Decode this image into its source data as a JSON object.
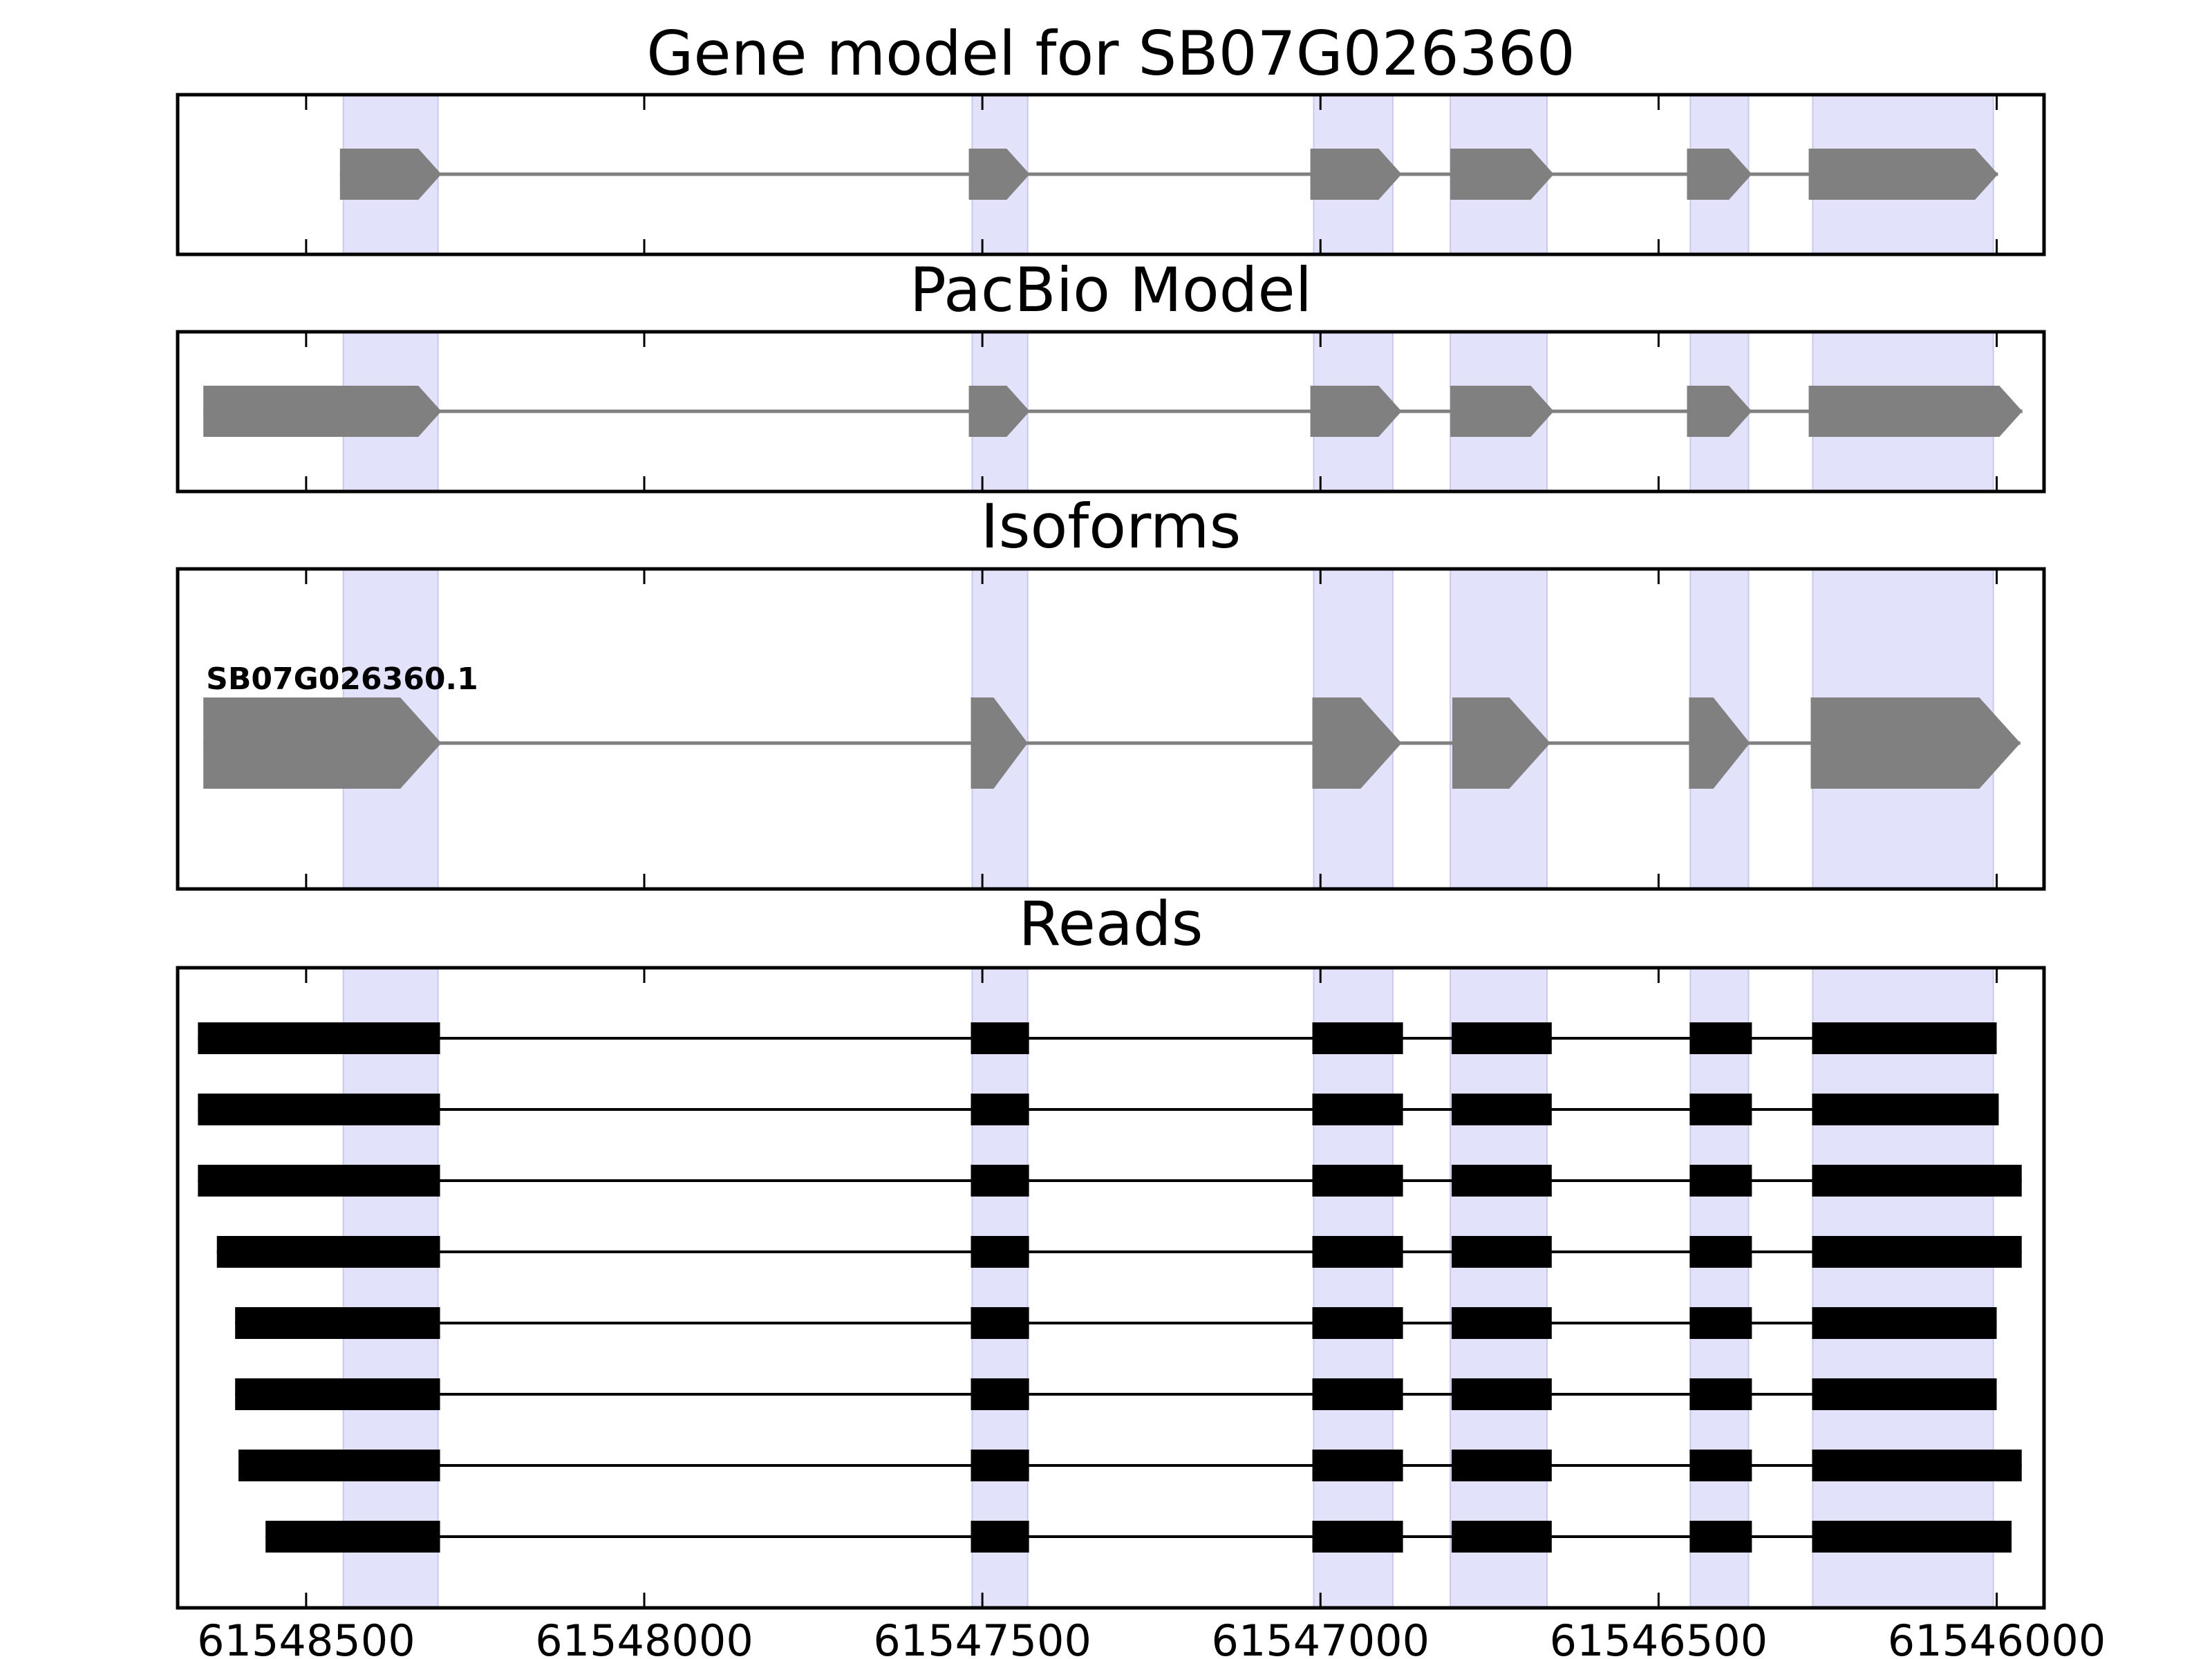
{
  "colors": {
    "highlight": "#e2e2fb",
    "highlight_edge": "#c8c8f0",
    "model_feature": "#808080",
    "read": "#000000",
    "frame": "#000000"
  },
  "chart_data": {
    "type": "gene-track",
    "x_axis": {
      "range": [
        61548690,
        61545930
      ],
      "reversed": true,
      "ticks": [
        61548500,
        61548000,
        61547500,
        61547000,
        61546500,
        61546000
      ],
      "tick_labels": [
        "61548500",
        "61548000",
        "61547500",
        "61547000",
        "61546500",
        "61546000"
      ]
    },
    "highlighted_exons": [
      [
        61548445,
        61548305
      ],
      [
        61547515,
        61547433
      ],
      [
        61547010,
        61546893
      ],
      [
        61546808,
        61546665
      ],
      [
        61546453,
        61546367
      ],
      [
        61546272,
        61546005
      ]
    ],
    "panels": [
      {
        "title": "Gene model for SB07G026360",
        "kind": "model",
        "tracks": [
          {
            "label": "",
            "exons": [
              [
                61548450,
                61548300
              ],
              [
                61547520,
                61547430
              ],
              [
                61547015,
                61546880
              ],
              [
                61546808,
                61546655
              ],
              [
                61546458,
                61546362
              ],
              [
                61546278,
                61545998
              ]
            ]
          }
        ]
      },
      {
        "title": "PacBio Model",
        "kind": "model",
        "tracks": [
          {
            "label": "",
            "exons": [
              [
                61548652,
                61548300
              ],
              [
                61547520,
                61547430
              ],
              [
                61547015,
                61546880
              ],
              [
                61546808,
                61546655
              ],
              [
                61546458,
                61546362
              ],
              [
                61546278,
                61545962
              ]
            ]
          }
        ]
      },
      {
        "title": "Isoforms",
        "kind": "model",
        "tracks": [
          {
            "label": "SB07G026360.1",
            "exons": [
              [
                61548652,
                61548300
              ],
              [
                61547517,
                61547433
              ],
              [
                61547012,
                61546880
              ],
              [
                61546805,
                61546660
              ],
              [
                61546455,
                61546365
              ],
              [
                61546275,
                61545965
              ]
            ]
          }
        ]
      },
      {
        "title": "Reads",
        "kind": "reads",
        "tracks": [
          {
            "label": "",
            "exons": [
              [
                61548660,
                61548302
              ],
              [
                61547517,
                61547431
              ],
              [
                61547012,
                61546878
              ],
              [
                61546806,
                61546658
              ],
              [
                61546454,
                61546362
              ],
              [
                61546273,
                61546000
              ]
            ]
          },
          {
            "label": "",
            "exons": [
              [
                61548660,
                61548302
              ],
              [
                61547517,
                61547431
              ],
              [
                61547012,
                61546878
              ],
              [
                61546806,
                61546658
              ],
              [
                61546454,
                61546362
              ],
              [
                61546273,
                61545997
              ]
            ]
          },
          {
            "label": "",
            "exons": [
              [
                61548660,
                61548302
              ],
              [
                61547517,
                61547431
              ],
              [
                61547012,
                61546878
              ],
              [
                61546806,
                61546658
              ],
              [
                61546454,
                61546362
              ],
              [
                61546273,
                61545963
              ]
            ]
          },
          {
            "label": "",
            "exons": [
              [
                61548632,
                61548302
              ],
              [
                61547517,
                61547431
              ],
              [
                61547012,
                61546878
              ],
              [
                61546806,
                61546658
              ],
              [
                61546454,
                61546362
              ],
              [
                61546273,
                61545963
              ]
            ]
          },
          {
            "label": "",
            "exons": [
              [
                61548605,
                61548302
              ],
              [
                61547517,
                61547431
              ],
              [
                61547012,
                61546878
              ],
              [
                61546806,
                61546658
              ],
              [
                61546454,
                61546362
              ],
              [
                61546273,
                61546000
              ]
            ]
          },
          {
            "label": "",
            "exons": [
              [
                61548605,
                61548302
              ],
              [
                61547517,
                61547431
              ],
              [
                61547012,
                61546878
              ],
              [
                61546806,
                61546658
              ],
              [
                61546454,
                61546362
              ],
              [
                61546273,
                61546000
              ]
            ]
          },
          {
            "label": "",
            "exons": [
              [
                61548600,
                61548302
              ],
              [
                61547517,
                61547431
              ],
              [
                61547012,
                61546878
              ],
              [
                61546806,
                61546658
              ],
              [
                61546454,
                61546362
              ],
              [
                61546273,
                61545963
              ]
            ]
          },
          {
            "label": "",
            "exons": [
              [
                61548560,
                61548302
              ],
              [
                61547517,
                61547431
              ],
              [
                61547012,
                61546878
              ],
              [
                61546806,
                61546658
              ],
              [
                61546454,
                61546362
              ],
              [
                61546273,
                61545978
              ]
            ]
          }
        ]
      }
    ]
  }
}
